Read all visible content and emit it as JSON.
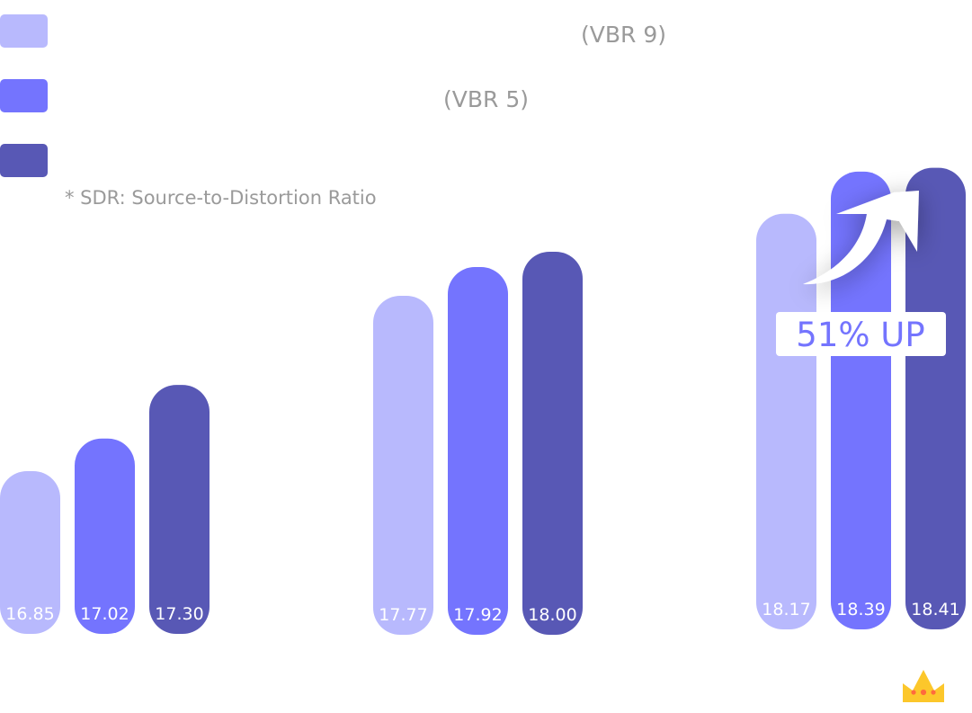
{
  "chart_data": {
    "type": "bar",
    "title": "",
    "xlabel": "",
    "ylabel": "",
    "categories": [
      "",
      "",
      ""
    ],
    "series": [
      {
        "name": "",
        "color": "#b8b9fd",
        "values": [
          16.85,
          17.77,
          18.17
        ],
        "labels": [
          "16.85",
          "17.77",
          "18.17"
        ]
      },
      {
        "name": "",
        "color": "#7474fe",
        "values": [
          17.02,
          17.92,
          18.39
        ],
        "labels": [
          "17.02",
          "17.92",
          "18.39"
        ]
      },
      {
        "name": "",
        "color": "#5858b5",
        "values": [
          17.3,
          18.0,
          18.41
        ],
        "labels": [
          "17.30",
          "18.00",
          "18.41"
        ]
      }
    ],
    "legend": {
      "placement": "top-left",
      "entries": [
        "(VBR 9)",
        "(VBR 5)",
        ""
      ]
    },
    "footnote": "* SDR: Source-to-Distortion Ratio",
    "callout": {
      "text": "51% UP",
      "color": "#7474fe"
    },
    "grid": false,
    "crown_icon": "crown-icon"
  }
}
